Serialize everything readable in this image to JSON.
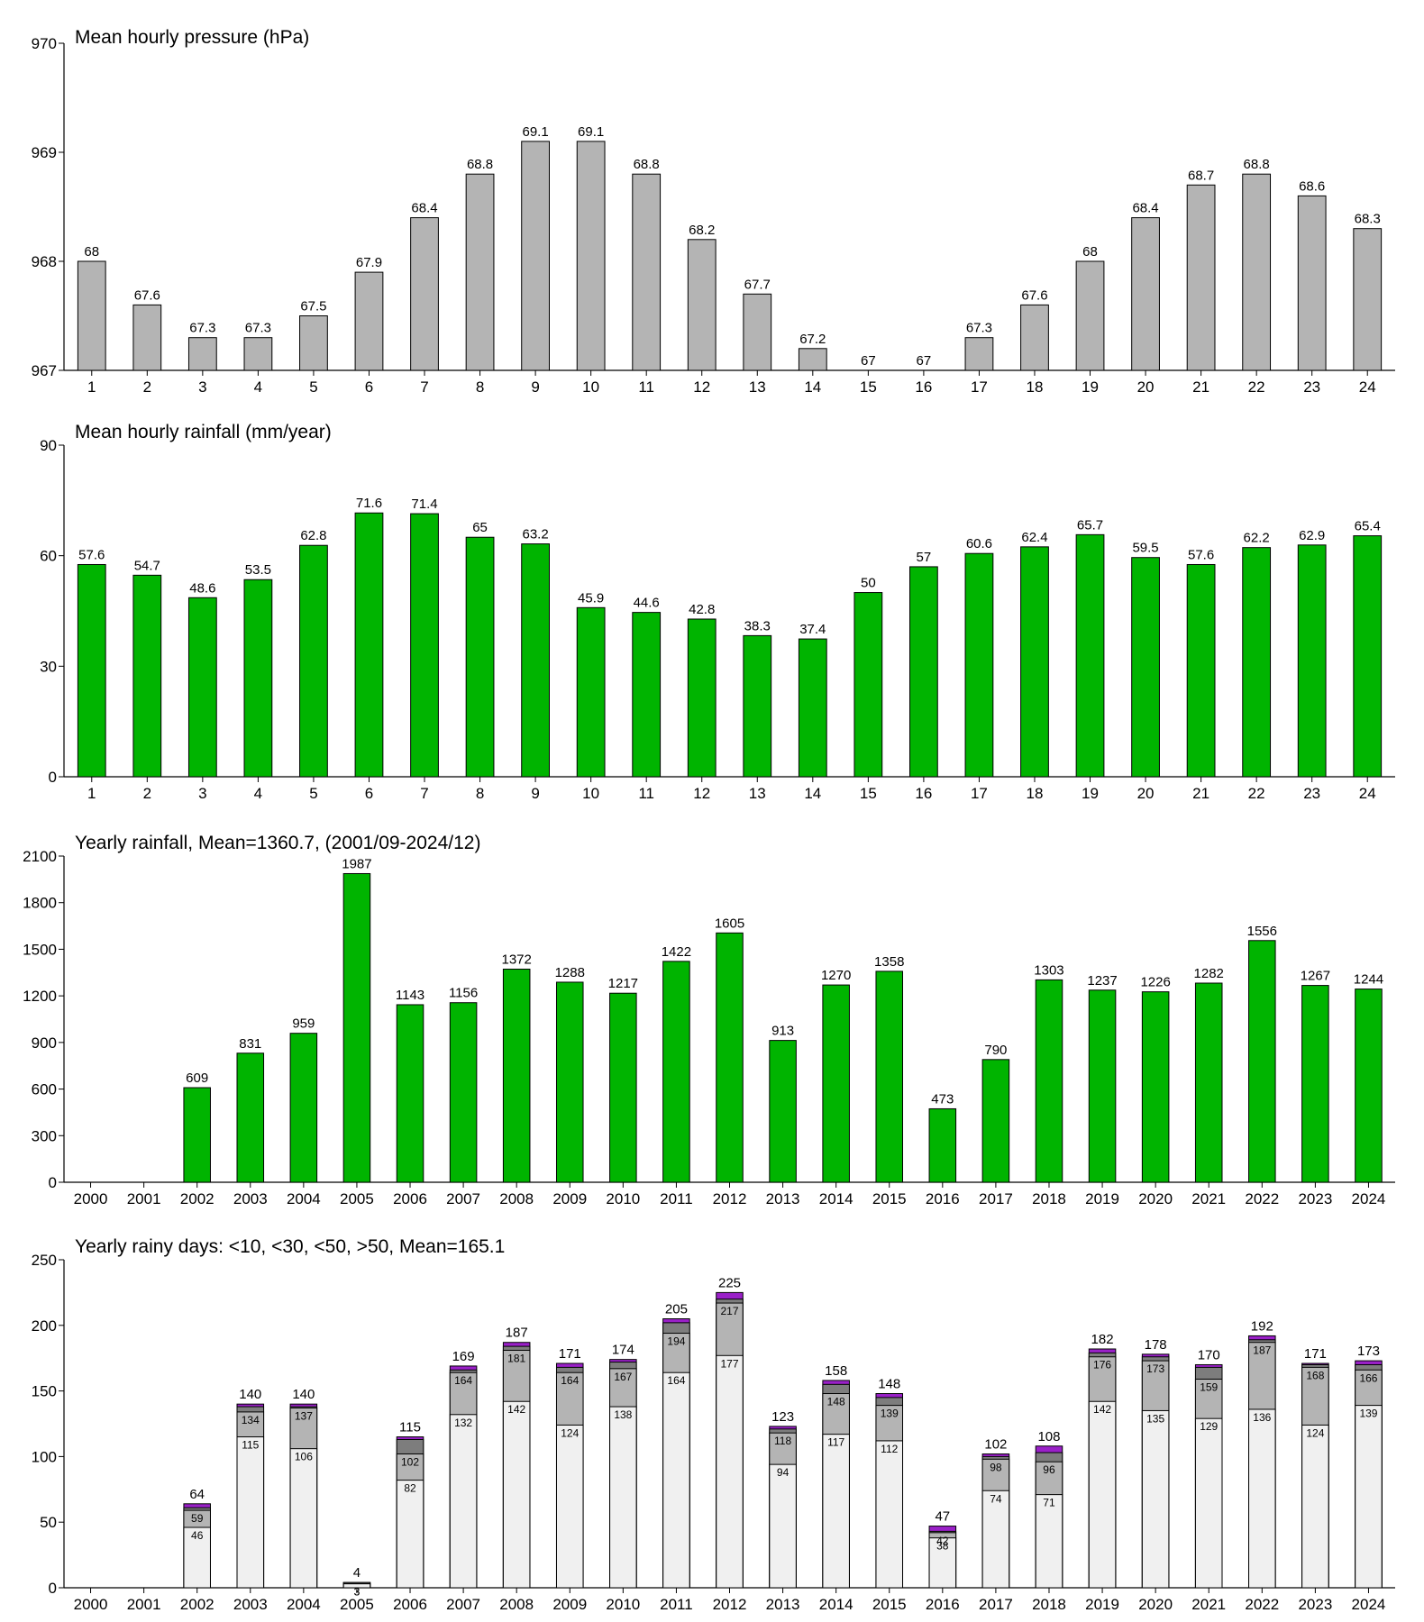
{
  "chart_data": [
    {
      "type": "bar",
      "title": "Mean hourly pressure (hPa)",
      "categories": [
        "1",
        "2",
        "3",
        "4",
        "5",
        "6",
        "7",
        "8",
        "9",
        "10",
        "11",
        "12",
        "13",
        "14",
        "15",
        "16",
        "17",
        "18",
        "19",
        "20",
        "21",
        "22",
        "23",
        "24"
      ],
      "values": [
        968.0,
        967.6,
        967.3,
        967.3,
        967.5,
        967.9,
        968.4,
        968.8,
        969.1,
        969.1,
        968.8,
        968.2,
        967.7,
        967.2,
        967.0,
        967.0,
        967.3,
        967.6,
        968.0,
        968.4,
        968.7,
        968.8,
        968.6,
        968.3
      ],
      "value_labels": [
        "68",
        "67.6",
        "67.3",
        "67.3",
        "67.5",
        "67.9",
        "68.4",
        "68.8",
        "69.1",
        "69.1",
        "68.8",
        "68.2",
        "67.7",
        "67.2",
        "67",
        "67",
        "67.3",
        "67.6",
        "68",
        "68.4",
        "68.7",
        "68.8",
        "68.6",
        "68.3"
      ],
      "color": "#b4b4b4",
      "ylim": [
        967,
        970
      ],
      "yticks": [
        967,
        968,
        969,
        970
      ]
    },
    {
      "type": "bar",
      "title": "Mean hourly rainfall (mm/year)",
      "categories": [
        "1",
        "2",
        "3",
        "4",
        "5",
        "6",
        "7",
        "8",
        "9",
        "10",
        "11",
        "12",
        "13",
        "14",
        "15",
        "16",
        "17",
        "18",
        "19",
        "20",
        "21",
        "22",
        "23",
        "24"
      ],
      "values": [
        57.6,
        54.7,
        48.6,
        53.5,
        62.8,
        71.6,
        71.4,
        65,
        63.2,
        45.9,
        44.6,
        42.8,
        38.3,
        37.4,
        50,
        57,
        60.6,
        62.4,
        65.7,
        59.5,
        57.6,
        62.2,
        62.9,
        65.4
      ],
      "color": "#00b400",
      "ylim": [
        0,
        90
      ],
      "yticks": [
        0,
        30,
        60,
        90
      ]
    },
    {
      "type": "bar",
      "title": "Yearly rainfall, Mean=1360.7, (2001/09-2024/12)",
      "categories": [
        "2000",
        "2001",
        "2002",
        "2003",
        "2004",
        "2005",
        "2006",
        "2007",
        "2008",
        "2009",
        "2010",
        "2011",
        "2012",
        "2013",
        "2014",
        "2015",
        "2016",
        "2017",
        "2018",
        "2019",
        "2020",
        "2021",
        "2022",
        "2023",
        "2024"
      ],
      "values": [
        null,
        null,
        609,
        831,
        959,
        1987,
        1143,
        1156,
        1372,
        1288,
        1217,
        1422,
        1605,
        913,
        1270,
        1358,
        473,
        790,
        1303,
        1237,
        1226,
        1282,
        1556,
        1267,
        1244
      ],
      "color": "#00b400",
      "ylim": [
        0,
        2100
      ],
      "yticks": [
        0,
        300,
        600,
        900,
        1200,
        1500,
        1800,
        2100
      ]
    },
    {
      "type": "bar",
      "title": "Yearly rainy days: <10, <30, <50, >50, Mean=165.1",
      "categories": [
        "2000",
        "2001",
        "2002",
        "2003",
        "2004",
        "2005",
        "2006",
        "2007",
        "2008",
        "2009",
        "2010",
        "2011",
        "2012",
        "2013",
        "2014",
        "2015",
        "2016",
        "2017",
        "2018",
        "2019",
        "2020",
        "2021",
        "2022",
        "2023",
        "2024"
      ],
      "series": [
        {
          "color": "#f0f0f0",
          "values": [
            null,
            null,
            46,
            115,
            106,
            3,
            82,
            132,
            142,
            124,
            138,
            164,
            177,
            94,
            117,
            112,
            38,
            74,
            71,
            142,
            135,
            129,
            136,
            124,
            139
          ]
        },
        {
          "color": "#b4b4b4",
          "values": [
            null,
            null,
            59,
            134,
            137,
            3,
            102,
            164,
            181,
            164,
            167,
            194,
            217,
            118,
            148,
            139,
            42,
            98,
            96,
            176,
            173,
            159,
            187,
            168,
            166
          ]
        },
        {
          "color": "#7d7d7d",
          "values": [
            null,
            null,
            61,
            138,
            138,
            4,
            113,
            166,
            184,
            168,
            172,
            202,
            220,
            121,
            155,
            145,
            43,
            100,
            103,
            179,
            176,
            168,
            189,
            170,
            170
          ]
        },
        {
          "color": "#9a20c8",
          "values": [
            null,
            null,
            64,
            140,
            140,
            4,
            115,
            169,
            187,
            171,
            174,
            205,
            225,
            123,
            158,
            148,
            47,
            102,
            108,
            182,
            178,
            170,
            192,
            171,
            173
          ]
        }
      ],
      "ylim": [
        0,
        250
      ],
      "yticks": [
        0,
        50,
        100,
        150,
        200,
        250
      ]
    }
  ]
}
